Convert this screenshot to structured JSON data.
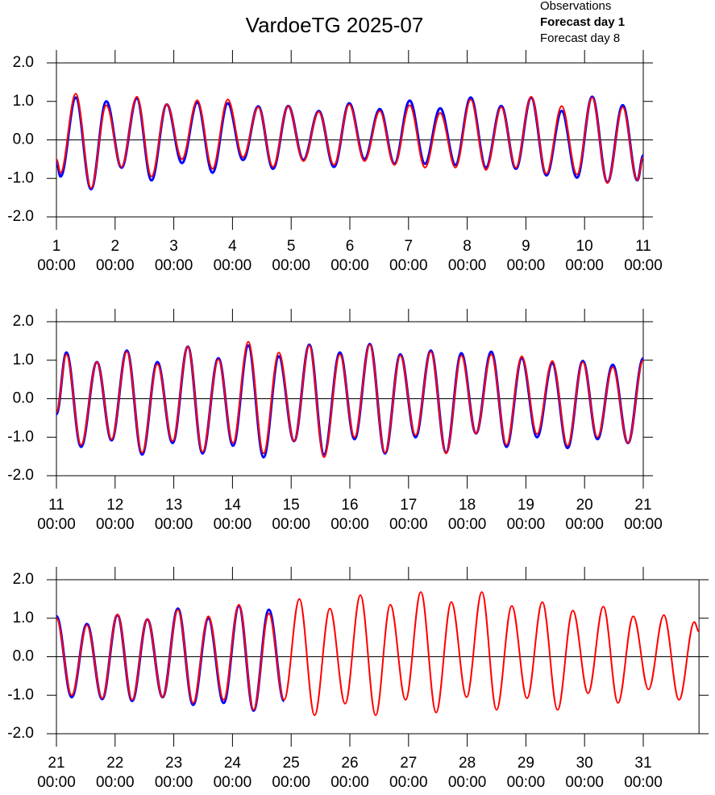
{
  "chart_data": [
    {
      "type": "line",
      "title": "VardoeTG 2025-07",
      "x": [
        1.0,
        1.07,
        1.33,
        1.59,
        1.85,
        2.11,
        2.37,
        2.62,
        2.88,
        3.14,
        3.4,
        3.66,
        3.92,
        4.18,
        4.44,
        4.69,
        4.95,
        5.21,
        5.47,
        5.73,
        5.99,
        6.25,
        6.51,
        6.76,
        7.02,
        7.28,
        7.54,
        7.8,
        8.06,
        8.32,
        8.58,
        8.83,
        9.09,
        9.35,
        9.61,
        9.87,
        10.13,
        10.39,
        10.65,
        10.9,
        11.0
      ],
      "series": [
        {
          "name": "Observations",
          "color": "#000000",
          "values": [
            null,
            null,
            null,
            null,
            null,
            null,
            null,
            null,
            null,
            null,
            null,
            null,
            null,
            null,
            null,
            null,
            null,
            null,
            null,
            null,
            null,
            null,
            null,
            null,
            null,
            null,
            null,
            null,
            null,
            null,
            null,
            null,
            null,
            null,
            null,
            null,
            null,
            null,
            null,
            null,
            null
          ]
        },
        {
          "name": "Forecast day 1",
          "color": "#0000ff",
          "values": [
            -0.55,
            -0.95,
            1.1,
            -1.28,
            1.0,
            -0.72,
            1.08,
            -1.05,
            0.92,
            -0.6,
            0.97,
            -0.85,
            0.95,
            -0.52,
            0.87,
            -0.75,
            0.88,
            -0.52,
            0.75,
            -0.7,
            0.95,
            -0.5,
            0.8,
            -0.62,
            1.02,
            -0.62,
            0.82,
            -0.65,
            1.1,
            -0.72,
            0.88,
            -0.75,
            1.1,
            -0.92,
            0.75,
            -0.98,
            1.12,
            -1.1,
            0.9,
            -1.05,
            -0.4
          ]
        },
        {
          "name": "Forecast day 8",
          "color": "#ff0000",
          "values": [
            -0.5,
            -0.85,
            1.2,
            -1.25,
            0.9,
            -0.7,
            1.12,
            -0.95,
            0.93,
            -0.5,
            1.03,
            -0.75,
            1.05,
            -0.45,
            0.85,
            -0.7,
            0.88,
            -0.55,
            0.73,
            -0.65,
            0.92,
            -0.55,
            0.75,
            -0.65,
            0.9,
            -0.72,
            0.7,
            -0.72,
            1.05,
            -0.78,
            0.85,
            -0.72,
            1.12,
            -0.88,
            0.88,
            -0.9,
            1.1,
            -1.12,
            0.85,
            -1.05,
            -0.45
          ]
        }
      ],
      "xlim": [
        1,
        11
      ],
      "xticks": [
        {
          "value": 1,
          "label": "1\n00:00"
        },
        {
          "value": 2,
          "label": "2\n00:00"
        },
        {
          "value": 3,
          "label": "3\n00:00"
        },
        {
          "value": 4,
          "label": "4\n00:00"
        },
        {
          "value": 5,
          "label": "5\n00:00"
        },
        {
          "value": 6,
          "label": "6\n00:00"
        },
        {
          "value": 7,
          "label": "7\n00:00"
        },
        {
          "value": 8,
          "label": "8\n00:00"
        },
        {
          "value": 9,
          "label": "9\n00:00"
        },
        {
          "value": 10,
          "label": "10\n00:00"
        },
        {
          "value": 11,
          "label": "11\n00:00"
        }
      ],
      "ylim": [
        -2,
        2
      ],
      "yticks": [
        {
          "value": -2,
          "label": "-2.0"
        },
        {
          "value": -1,
          "label": "-1.0"
        },
        {
          "value": 0,
          "label": "0.0"
        },
        {
          "value": 1,
          "label": "1.0"
        },
        {
          "value": 2,
          "label": "2.0"
        }
      ],
      "zero_line": true
    },
    {
      "type": "line",
      "x": [
        11.0,
        11.17,
        11.42,
        11.69,
        11.94,
        12.2,
        12.46,
        12.72,
        12.98,
        13.24,
        13.49,
        13.76,
        14.01,
        14.27,
        14.53,
        14.79,
        15.05,
        15.31,
        15.56,
        15.83,
        16.08,
        16.34,
        16.6,
        16.86,
        17.12,
        17.38,
        17.64,
        17.9,
        18.15,
        18.41,
        18.67,
        18.93,
        19.19,
        19.45,
        19.71,
        19.97,
        20.22,
        20.48,
        20.74,
        21.0
      ],
      "series": [
        {
          "color": "#0000ff",
          "values": [
            -0.4,
            1.2,
            -1.25,
            0.95,
            -1.08,
            1.25,
            -1.45,
            0.95,
            -1.15,
            1.35,
            -1.42,
            1.05,
            -1.22,
            1.38,
            -1.52,
            1.1,
            -1.1,
            1.4,
            -1.45,
            1.2,
            -1.05,
            1.42,
            -1.42,
            1.15,
            -1.0,
            1.25,
            -1.4,
            1.18,
            -0.9,
            1.22,
            -1.25,
            1.05,
            -1.0,
            0.92,
            -1.28,
            0.98,
            -1.05,
            0.88,
            -1.15,
            1.05
          ]
        },
        {
          "color": "#ff0000",
          "values": [
            -0.35,
            1.15,
            -1.2,
            0.95,
            -1.05,
            1.22,
            -1.4,
            0.9,
            -1.1,
            1.35,
            -1.38,
            1.02,
            -1.15,
            1.48,
            -1.42,
            1.2,
            -1.1,
            1.38,
            -1.52,
            1.15,
            -1.0,
            1.4,
            -1.4,
            1.12,
            -0.95,
            1.22,
            -1.42,
            1.12,
            -0.9,
            1.15,
            -1.2,
            1.1,
            -0.92,
            0.98,
            -1.22,
            0.95,
            -1.0,
            0.82,
            -1.15,
            1.0
          ]
        }
      ],
      "xlim": [
        11,
        21
      ],
      "xticks": [
        {
          "value": 11,
          "label": "11\n00:00"
        },
        {
          "value": 12,
          "label": "12\n00:00"
        },
        {
          "value": 13,
          "label": "13\n00:00"
        },
        {
          "value": 14,
          "label": "14\n00:00"
        },
        {
          "value": 15,
          "label": "15\n00:00"
        },
        {
          "value": 16,
          "label": "16\n00:00"
        },
        {
          "value": 17,
          "label": "17\n00:00"
        },
        {
          "value": 18,
          "label": "18\n00:00"
        },
        {
          "value": 19,
          "label": "19\n00:00"
        },
        {
          "value": 20,
          "label": "20\n00:00"
        },
        {
          "value": 21,
          "label": "21\n00:00"
        }
      ],
      "ylim": [
        -2,
        2
      ],
      "yticks": [
        {
          "value": -2,
          "label": "-2.0"
        },
        {
          "value": -1,
          "label": "-1.0"
        },
        {
          "value": 0,
          "label": "0.0"
        },
        {
          "value": 1,
          "label": "1.0"
        },
        {
          "value": 2,
          "label": "2.0"
        }
      ],
      "zero_line": true
    },
    {
      "type": "line",
      "x": [
        21.0,
        21.26,
        21.52,
        21.78,
        22.04,
        22.29,
        22.55,
        22.81,
        23.07,
        23.33,
        23.59,
        23.85,
        24.11,
        24.36,
        24.62,
        24.88,
        25.14,
        25.4,
        25.66,
        25.92,
        26.18,
        26.44,
        26.69,
        26.95,
        27.21,
        27.47,
        27.73,
        27.99,
        28.25,
        28.5,
        28.76,
        29.02,
        29.28,
        29.54,
        29.8,
        30.06,
        30.32,
        30.57,
        30.83,
        31.09,
        31.35,
        31.61,
        31.87,
        31.95
      ],
      "series": [
        {
          "color": "#0000ff",
          "values": [
            1.05,
            -1.05,
            0.85,
            -1.1,
            1.08,
            -1.15,
            0.97,
            -1.05,
            1.25,
            -1.25,
            1.0,
            -1.2,
            1.32,
            -1.4,
            1.22,
            -1.15,
            null,
            null,
            null,
            null,
            null,
            null,
            null,
            null,
            null,
            null,
            null,
            null,
            null,
            null,
            null,
            null,
            null,
            null,
            null,
            null,
            null,
            null,
            null,
            null,
            null,
            null,
            null,
            null
          ]
        },
        {
          "color": "#ff0000",
          "values": [
            1.0,
            -1.0,
            0.82,
            -1.08,
            1.1,
            -1.12,
            0.98,
            -1.05,
            1.22,
            -1.2,
            1.05,
            -1.12,
            1.35,
            -1.38,
            1.12,
            -1.12,
            1.5,
            -1.52,
            1.25,
            -1.22,
            1.6,
            -1.52,
            1.35,
            -1.12,
            1.68,
            -1.45,
            1.42,
            -1.05,
            1.68,
            -1.38,
            1.32,
            -1.08,
            1.42,
            -1.38,
            1.2,
            -0.95,
            1.3,
            -1.2,
            1.05,
            -0.85,
            1.08,
            -1.12,
            0.9,
            0.65
          ]
        }
      ],
      "xlim": [
        21,
        31.95
      ],
      "xticks": [
        {
          "value": 21,
          "label": "21\n00:00"
        },
        {
          "value": 22,
          "label": "22\n00:00"
        },
        {
          "value": 23,
          "label": "23\n00:00"
        },
        {
          "value": 24,
          "label": "24\n00:00"
        },
        {
          "value": 25,
          "label": "25\n00:00"
        },
        {
          "value": 26,
          "label": "26\n00:00"
        },
        {
          "value": 27,
          "label": "27\n00:00"
        },
        {
          "value": 28,
          "label": "28\n00:00"
        },
        {
          "value": 29,
          "label": "29\n00:00"
        },
        {
          "value": 30,
          "label": "30\n00:00"
        },
        {
          "value": 31,
          "label": "31\n00:00"
        }
      ],
      "ylim": [
        -2,
        2
      ],
      "yticks": [
        {
          "value": -2,
          "label": "-2.0"
        },
        {
          "value": -1,
          "label": "-1.0"
        },
        {
          "value": 0,
          "label": "0.0"
        },
        {
          "value": 1,
          "label": "1.0"
        },
        {
          "value": 2,
          "label": "2.0"
        }
      ],
      "zero_line": true
    }
  ]
}
